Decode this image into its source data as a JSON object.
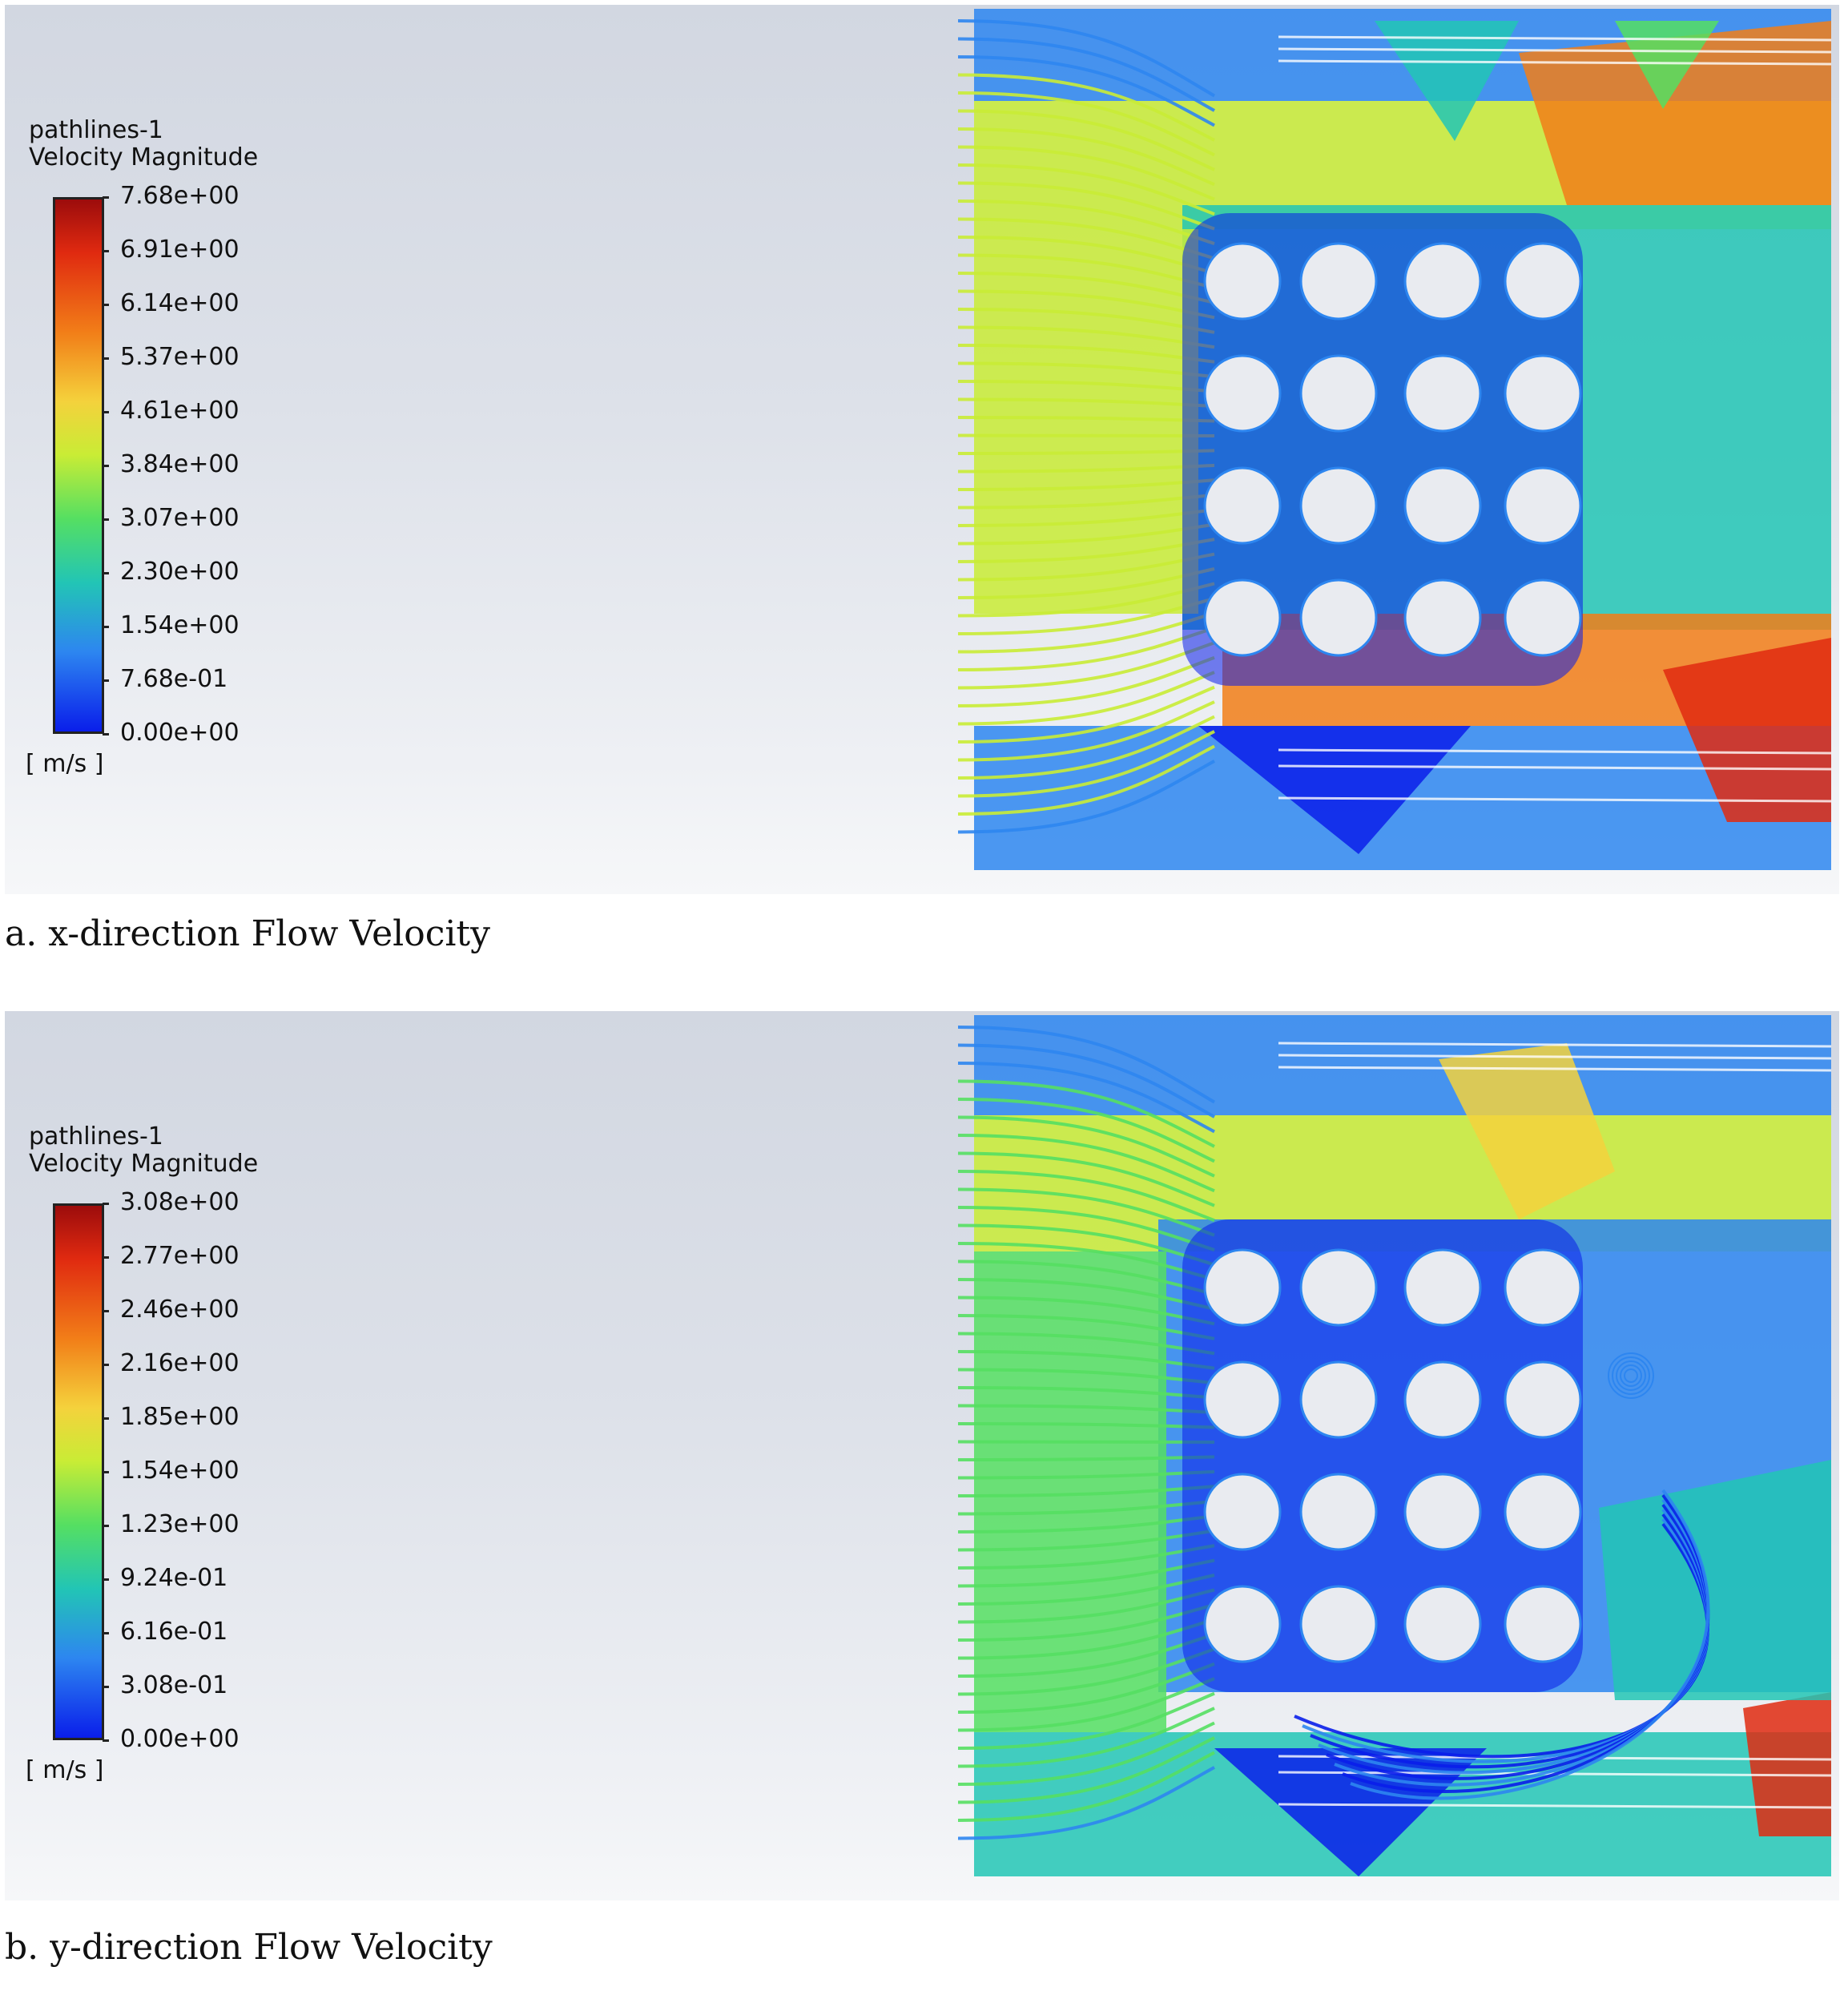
{
  "panels": [
    {
      "legend": {
        "title_line1": "pathlines-1",
        "title_line2": "Velocity Magnitude",
        "ticks": [
          "7.68e+00",
          "6.91e+00",
          "6.14e+00",
          "5.37e+00",
          "4.61e+00",
          "3.84e+00",
          "3.07e+00",
          "2.30e+00",
          "1.54e+00",
          "7.68e-01",
          "0.00e+00"
        ],
        "unit": "[ m/s ]"
      },
      "caption": "a. x-direction Flow Velocity"
    },
    {
      "legend": {
        "title_line1": "pathlines-1",
        "title_line2": "Velocity Magnitude",
        "ticks": [
          "3.08e+00",
          "2.77e+00",
          "2.46e+00",
          "2.16e+00",
          "1.85e+00",
          "1.54e+00",
          "1.23e+00",
          "9.24e-01",
          "6.16e-01",
          "3.08e-01",
          "0.00e+00"
        ],
        "unit": "[ m/s ]"
      },
      "caption": "b. y-direction Flow Velocity"
    }
  ],
  "colors": {
    "colormap": [
      "#0a1eea",
      "#2d86f0",
      "#22c5b5",
      "#55df62",
      "#c9ec35",
      "#f4d23c",
      "#f27e18",
      "#e02a10",
      "#9c0c0c"
    ],
    "cylinder": "#e9ebf0"
  }
}
